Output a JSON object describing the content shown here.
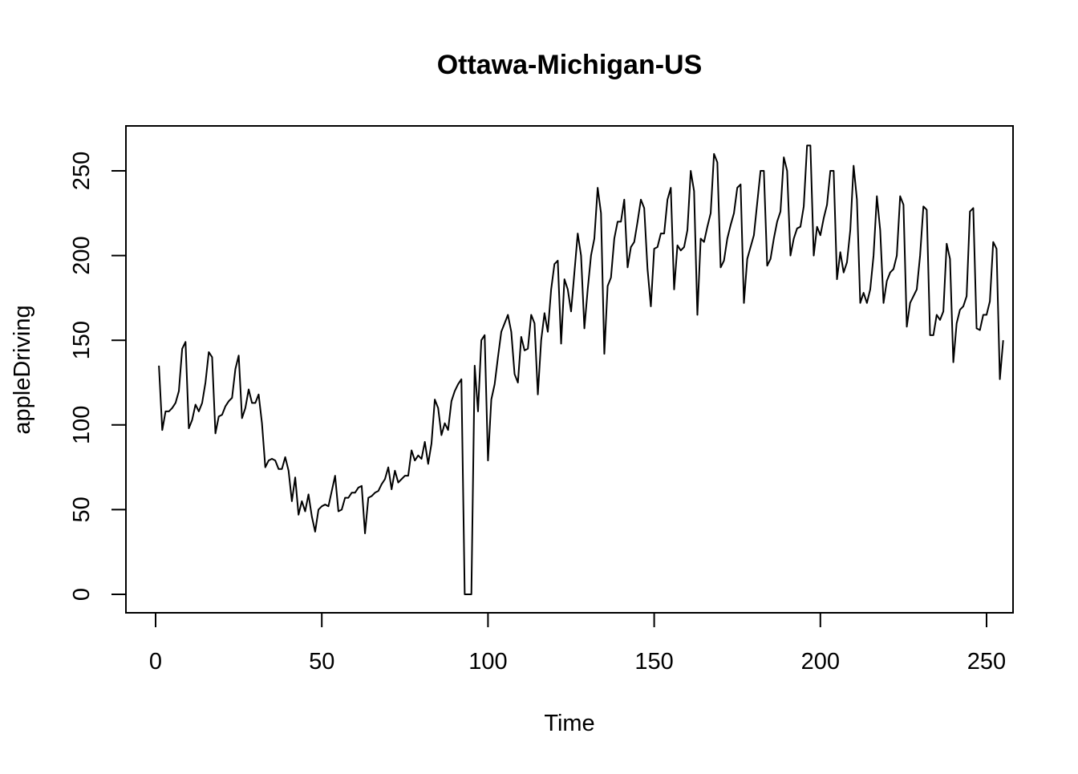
{
  "chart_data": {
    "type": "line",
    "title": "Ottawa-Michigan-US",
    "xlabel": "Time",
    "ylabel": "appleDriving",
    "xlim": [
      0,
      250
    ],
    "ylim": [
      0,
      260
    ],
    "xticks": [
      0,
      50,
      100,
      150,
      200,
      250
    ],
    "yticks": [
      0,
      50,
      100,
      150,
      200,
      250
    ],
    "xtick_labels": [
      "0",
      "50",
      "100",
      "150",
      "200",
      "250"
    ],
    "ytick_labels": [
      "0",
      "50",
      "100",
      "150",
      "200",
      "250"
    ],
    "grid": false,
    "legend": "none",
    "line_color": "#000000",
    "x_start": 1,
    "series": [
      {
        "values": [
          135,
          97,
          108,
          108,
          110,
          113,
          120,
          145,
          149,
          98,
          103,
          112,
          108,
          113,
          125,
          143,
          140,
          95,
          105,
          106,
          111,
          114,
          116,
          133,
          141,
          104,
          110,
          121,
          113,
          113,
          118,
          101,
          75,
          79,
          80,
          79,
          74,
          74,
          81,
          73,
          55,
          69,
          47,
          55,
          49,
          59,
          46,
          37,
          50,
          52,
          53,
          52,
          61,
          70,
          49,
          50,
          57,
          57,
          60,
          60,
          63,
          64,
          36,
          57,
          58,
          60,
          61,
          65,
          68,
          75,
          62,
          73,
          66,
          68,
          70,
          70,
          85,
          79,
          82,
          80,
          90,
          77,
          89,
          115,
          110,
          94,
          101,
          97,
          114,
          120,
          124,
          127,
          0,
          0,
          0,
          135,
          108,
          150,
          153,
          79,
          115,
          124,
          140,
          155,
          160,
          165,
          155,
          130,
          125,
          152,
          144,
          145,
          165,
          160,
          118,
          150,
          166,
          155,
          180,
          195,
          197,
          148,
          186,
          180,
          167,
          190,
          213,
          200,
          157,
          180,
          200,
          210,
          240,
          225,
          142,
          182,
          187,
          210,
          220,
          220,
          233,
          193,
          205,
          208,
          220,
          233,
          228,
          192,
          170,
          204,
          205,
          213,
          213,
          233,
          240,
          180,
          206,
          203,
          205,
          215,
          250,
          238,
          165,
          210,
          208,
          217,
          225,
          260,
          255,
          193,
          197,
          210,
          218,
          225,
          240,
          242,
          172,
          198,
          205,
          212,
          231,
          250,
          250,
          194,
          198,
          210,
          220,
          226,
          258,
          250,
          200,
          210,
          216,
          217,
          229,
          265,
          265,
          200,
          217,
          212,
          222,
          230,
          250,
          250,
          186,
          202,
          190,
          196,
          215,
          253,
          233,
          172,
          178,
          172,
          180,
          200,
          235,
          215,
          172,
          185,
          190,
          192,
          200,
          235,
          230,
          158,
          172,
          176,
          180,
          200,
          229,
          227,
          153,
          153,
          165,
          162,
          167,
          207,
          198,
          137,
          160,
          168,
          170,
          176,
          226,
          228,
          157,
          156,
          165,
          165,
          173,
          208,
          204,
          127,
          150
        ]
      }
    ]
  }
}
